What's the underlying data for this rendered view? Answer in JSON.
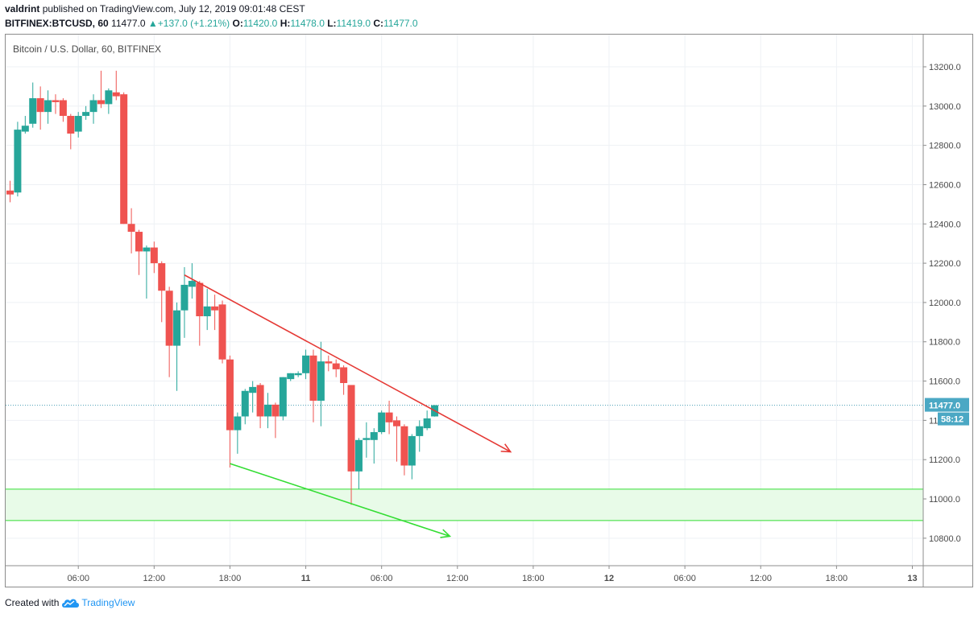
{
  "header": {
    "author": "valdrint",
    "published_text": "published on TradingView.com, July 12, 2019 09:01:48 CEST",
    "symbol": "BITFINEX:BTCUSD, 60",
    "last": "11477.0",
    "change": "+137.0 (+1.21%)",
    "o_label": "O:",
    "o_value": "11420.0",
    "h_label": "H:",
    "h_value": "11478.0",
    "l_label": "L:",
    "l_value": "11419.0",
    "c_label": "C:",
    "c_value": "11477.0"
  },
  "chart_title": "Bitcoin / U.S. Dollar, 60, BITFINEX",
  "footer": {
    "created_with": "Created with",
    "brand": "TradingView"
  },
  "colors": {
    "up": "#26a69a",
    "down": "#ef5350",
    "resistance": "#e53935",
    "support": "#33dd33",
    "zone": "#e8fbe8",
    "price_line": "#4a9fb5"
  },
  "chart_data": {
    "type": "candlestick",
    "title": "Bitcoin / U.S. Dollar, 60, BITFINEX",
    "ylim": [
      10640,
      13320
    ],
    "xlim": [
      0,
      120
    ],
    "y_ticks": [
      "13200.0",
      "13000.0",
      "12800.0",
      "12600.0",
      "12400.0",
      "12200.0",
      "12000.0",
      "11800.0",
      "11600.0",
      "11400.0",
      "11200.0",
      "11000.0",
      "10800.0"
    ],
    "x_ticks": [
      {
        "x": 9,
        "label": "06:00"
      },
      {
        "x": 19,
        "label": "12:00"
      },
      {
        "x": 29,
        "label": "18:00"
      },
      {
        "x": 39,
        "label": "11"
      },
      {
        "x": 49,
        "label": "06:00"
      },
      {
        "x": 59,
        "label": "12:00"
      },
      {
        "x": 69,
        "label": "18:00"
      },
      {
        "x": 79,
        "label": "12"
      },
      {
        "x": 89,
        "label": "06:00"
      },
      {
        "x": 99,
        "label": "12:00"
      },
      {
        "x": 109,
        "label": "18:00"
      },
      {
        "x": 119,
        "label": "13"
      }
    ],
    "last_price": {
      "value": 11477.0,
      "label": "11477.0",
      "countdown": "58:12"
    },
    "candles": [
      {
        "x": 0,
        "o": 12570,
        "h": 12620,
        "l": 12510,
        "c": 12550
      },
      {
        "x": 1,
        "o": 12560,
        "h": 12920,
        "l": 12540,
        "c": 12880
      },
      {
        "x": 2,
        "o": 12870,
        "h": 12950,
        "l": 12860,
        "c": 12900
      },
      {
        "x": 3,
        "o": 12910,
        "h": 13120,
        "l": 12890,
        "c": 13040
      },
      {
        "x": 4,
        "o": 13040,
        "h": 13100,
        "l": 12880,
        "c": 12970
      },
      {
        "x": 5,
        "o": 12970,
        "h": 13080,
        "l": 12910,
        "c": 13030
      },
      {
        "x": 6,
        "o": 13030,
        "h": 13060,
        "l": 12960,
        "c": 13020
      },
      {
        "x": 7,
        "o": 13030,
        "h": 13040,
        "l": 12920,
        "c": 12950
      },
      {
        "x": 8,
        "o": 12950,
        "h": 12960,
        "l": 12780,
        "c": 12860
      },
      {
        "x": 9,
        "o": 12870,
        "h": 12970,
        "l": 12840,
        "c": 12950
      },
      {
        "x": 10,
        "o": 12950,
        "h": 13000,
        "l": 12930,
        "c": 12970
      },
      {
        "x": 11,
        "o": 12970,
        "h": 13060,
        "l": 12910,
        "c": 13030
      },
      {
        "x": 12,
        "o": 13030,
        "h": 13180,
        "l": 12990,
        "c": 13010
      },
      {
        "x": 13,
        "o": 13010,
        "h": 13090,
        "l": 12960,
        "c": 13080
      },
      {
        "x": 14,
        "o": 13070,
        "h": 13180,
        "l": 13030,
        "c": 13050
      },
      {
        "x": 15,
        "o": 13060,
        "h": 13070,
        "l": 12400,
        "c": 12400
      },
      {
        "x": 16,
        "o": 12400,
        "h": 12480,
        "l": 12250,
        "c": 12360
      },
      {
        "x": 17,
        "o": 12360,
        "h": 12370,
        "l": 12140,
        "c": 12260
      },
      {
        "x": 18,
        "o": 12260,
        "h": 12290,
        "l": 12020,
        "c": 12280
      },
      {
        "x": 19,
        "o": 12280,
        "h": 12310,
        "l": 12150,
        "c": 12200
      },
      {
        "x": 20,
        "o": 12200,
        "h": 12210,
        "l": 11900,
        "c": 12060
      },
      {
        "x": 21,
        "o": 12060,
        "h": 12080,
        "l": 11620,
        "c": 11780
      },
      {
        "x": 22,
        "o": 11780,
        "h": 12000,
        "l": 11550,
        "c": 11960
      },
      {
        "x": 23,
        "o": 11960,
        "h": 12180,
        "l": 11820,
        "c": 12090
      },
      {
        "x": 24,
        "o": 12080,
        "h": 12200,
        "l": 12020,
        "c": 12110
      },
      {
        "x": 25,
        "o": 12100,
        "h": 12110,
        "l": 11780,
        "c": 11930
      },
      {
        "x": 26,
        "o": 11930,
        "h": 12070,
        "l": 11860,
        "c": 11980
      },
      {
        "x": 27,
        "o": 11980,
        "h": 12040,
        "l": 11860,
        "c": 11960
      },
      {
        "x": 28,
        "o": 11990,
        "h": 12010,
        "l": 11690,
        "c": 11710
      },
      {
        "x": 29,
        "o": 11710,
        "h": 11730,
        "l": 11160,
        "c": 11350
      },
      {
        "x": 30,
        "o": 11350,
        "h": 11440,
        "l": 11230,
        "c": 11420
      },
      {
        "x": 31,
        "o": 11420,
        "h": 11560,
        "l": 11380,
        "c": 11550
      },
      {
        "x": 32,
        "o": 11540,
        "h": 11600,
        "l": 11440,
        "c": 11570
      },
      {
        "x": 33,
        "o": 11580,
        "h": 11590,
        "l": 11360,
        "c": 11420
      },
      {
        "x": 34,
        "o": 11420,
        "h": 11540,
        "l": 11360,
        "c": 11480
      },
      {
        "x": 35,
        "o": 11480,
        "h": 11490,
        "l": 11310,
        "c": 11420
      },
      {
        "x": 36,
        "o": 11420,
        "h": 11620,
        "l": 11400,
        "c": 11620
      },
      {
        "x": 37,
        "o": 11610,
        "h": 11640,
        "l": 11600,
        "c": 11640
      },
      {
        "x": 38,
        "o": 11630,
        "h": 11650,
        "l": 11620,
        "c": 11640
      },
      {
        "x": 39,
        "o": 11640,
        "h": 11760,
        "l": 11610,
        "c": 11730
      },
      {
        "x": 40,
        "o": 11730,
        "h": 11760,
        "l": 11390,
        "c": 11500
      },
      {
        "x": 41,
        "o": 11500,
        "h": 11800,
        "l": 11370,
        "c": 11700
      },
      {
        "x": 42,
        "o": 11700,
        "h": 11730,
        "l": 11650,
        "c": 11690
      },
      {
        "x": 43,
        "o": 11690,
        "h": 11710,
        "l": 11620,
        "c": 11660
      },
      {
        "x": 44,
        "o": 11670,
        "h": 11680,
        "l": 11530,
        "c": 11590
      },
      {
        "x": 45,
        "o": 11580,
        "h": 11580,
        "l": 10970,
        "c": 11140
      },
      {
        "x": 46,
        "o": 11140,
        "h": 11310,
        "l": 11050,
        "c": 11300
      },
      {
        "x": 47,
        "o": 11300,
        "h": 11390,
        "l": 11210,
        "c": 11310
      },
      {
        "x": 48,
        "o": 11300,
        "h": 11360,
        "l": 11180,
        "c": 11340
      },
      {
        "x": 49,
        "o": 11340,
        "h": 11450,
        "l": 11330,
        "c": 11440
      },
      {
        "x": 50,
        "o": 11440,
        "h": 11500,
        "l": 11330,
        "c": 11390
      },
      {
        "x": 51,
        "o": 11400,
        "h": 11420,
        "l": 11190,
        "c": 11370
      },
      {
        "x": 52,
        "o": 11370,
        "h": 11380,
        "l": 11120,
        "c": 11170
      },
      {
        "x": 53,
        "o": 11170,
        "h": 11330,
        "l": 11100,
        "c": 11320
      },
      {
        "x": 54,
        "o": 11320,
        "h": 11400,
        "l": 11240,
        "c": 11370
      },
      {
        "x": 55,
        "o": 11360,
        "h": 11450,
        "l": 11350,
        "c": 11410
      },
      {
        "x": 56,
        "o": 11420,
        "h": 11478,
        "l": 11419,
        "c": 11477
      }
    ],
    "resistance_line": {
      "from": {
        "x": 23,
        "y": 12140
      },
      "to": {
        "x": 66,
        "y": 11240
      }
    },
    "support_line": {
      "from": {
        "x": 29,
        "y": 11180
      },
      "to": {
        "x": 58,
        "y": 10810
      }
    },
    "support_zone": {
      "y1": 11050,
      "y2": 10890
    }
  }
}
